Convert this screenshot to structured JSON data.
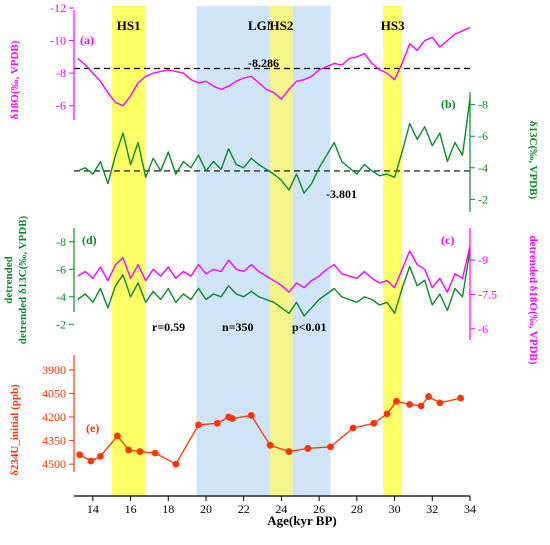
{
  "chart_data": [
    {
      "panel": "(a)",
      "type": "line",
      "ylabel": "δ18O(‰, VPDB)",
      "ylim": [
        -5,
        -12
      ],
      "yticks": [
        -6,
        -8,
        -10,
        -12
      ],
      "mean_value": -8.286,
      "mean_label": "-8.286",
      "color": "#ff00ff",
      "x": [
        13.2,
        13.6,
        14.0,
        14.4,
        14.8,
        15.2,
        15.6,
        16.0,
        16.4,
        16.8,
        17.2,
        17.6,
        18.0,
        18.4,
        18.8,
        19.2,
        19.6,
        20.0,
        20.4,
        20.8,
        21.2,
        21.6,
        22.0,
        22.4,
        22.8,
        23.2,
        23.6,
        24.0,
        24.4,
        24.8,
        25.2,
        25.6,
        26.0,
        26.4,
        26.8,
        27.2,
        27.6,
        28.0,
        28.4,
        28.8,
        29.2,
        29.6,
        30.0,
        30.4,
        30.8,
        31.2,
        31.6,
        32.0,
        32.4,
        32.8,
        33.2,
        33.6,
        34.0
      ],
      "values": [
        -8.9,
        -8.5,
        -8.0,
        -7.5,
        -6.8,
        -6.2,
        -6.0,
        -6.6,
        -7.4,
        -7.8,
        -8.0,
        -8.1,
        -8.2,
        -8.1,
        -8.0,
        -7.6,
        -7.4,
        -7.5,
        -7.2,
        -7.0,
        -7.2,
        -7.5,
        -7.7,
        -7.8,
        -7.4,
        -7.0,
        -6.8,
        -6.4,
        -7.0,
        -7.5,
        -7.6,
        -7.8,
        -8.2,
        -8.4,
        -8.6,
        -8.5,
        -8.9,
        -9.0,
        -9.2,
        -8.6,
        -8.2,
        -8.0,
        -7.6,
        -8.6,
        -9.8,
        -9.4,
        -10.0,
        -10.2,
        -9.6,
        -10.0,
        -10.4,
        -10.6,
        -10.8
      ]
    },
    {
      "panel": "(b)",
      "type": "line",
      "ylabel": "δ13C(‰, VPDB)",
      "ylim": [
        -1.2,
        -8.8
      ],
      "yticks": [
        -2,
        -4,
        -6,
        -8
      ],
      "mean_value": -3.801,
      "mean_label": "-3.801",
      "color": "#0a8a2a",
      "x": [
        13.2,
        13.6,
        14.0,
        14.4,
        14.8,
        15.2,
        15.6,
        16.0,
        16.4,
        16.8,
        17.2,
        17.6,
        18.0,
        18.4,
        18.8,
        19.2,
        19.6,
        20.0,
        20.4,
        20.8,
        21.2,
        21.6,
        22.0,
        22.4,
        22.8,
        23.2,
        23.6,
        24.0,
        24.4,
        24.8,
        25.2,
        25.6,
        26.0,
        26.4,
        26.8,
        27.2,
        27.6,
        28.0,
        28.4,
        28.8,
        29.2,
        29.6,
        30.0,
        30.4,
        30.8,
        31.2,
        31.6,
        32.0,
        32.4,
        32.8,
        33.2,
        33.6,
        34.0
      ],
      "values": [
        -3.8,
        -4.0,
        -3.6,
        -4.4,
        -3.0,
        -4.8,
        -6.2,
        -4.2,
        -5.6,
        -3.4,
        -4.6,
        -3.8,
        -5.0,
        -3.6,
        -4.4,
        -4.0,
        -4.8,
        -3.8,
        -4.4,
        -3.9,
        -5.2,
        -4.2,
        -4.0,
        -4.6,
        -4.2,
        -3.9,
        -3.6,
        -3.2,
        -2.6,
        -3.6,
        -2.4,
        -3.0,
        -4.0,
        -4.8,
        -5.6,
        -4.4,
        -4.0,
        -3.6,
        -4.2,
        -3.8,
        -3.5,
        -3.6,
        -3.4,
        -5.0,
        -6.8,
        -5.8,
        -6.6,
        -5.4,
        -6.2,
        -4.4,
        -5.6,
        -4.8,
        -8.4
      ]
    },
    {
      "panel": "(c)/(d)",
      "type": "line",
      "annotations": [
        "r=0.59",
        "n=350",
        "p<0.01"
      ],
      "series": [
        {
          "name": "detrended δ13C(‰, VPDB)",
          "label": "(d)",
          "color": "#0a8a2a",
          "ylim": [
            -1.0,
            -9.0
          ],
          "yticks": [
            -2,
            -4,
            -6,
            -8
          ],
          "x": [
            13.2,
            13.6,
            14.0,
            14.4,
            14.8,
            15.2,
            15.6,
            16.0,
            16.4,
            16.8,
            17.2,
            17.6,
            18.0,
            18.4,
            18.8,
            19.2,
            19.6,
            20.0,
            20.4,
            20.8,
            21.2,
            21.6,
            22.0,
            22.4,
            22.8,
            23.2,
            23.6,
            24.0,
            24.4,
            24.8,
            25.2,
            25.6,
            26.0,
            26.4,
            26.8,
            27.2,
            27.6,
            28.0,
            28.4,
            28.8,
            29.2,
            29.6,
            30.0,
            30.4,
            30.8,
            31.2,
            31.6,
            32.0,
            32.4,
            32.8,
            33.2,
            33.6,
            34.0
          ],
          "values": [
            -3.8,
            -4.2,
            -3.6,
            -4.6,
            -3.2,
            -4.8,
            -5.6,
            -4.0,
            -5.0,
            -3.6,
            -4.4,
            -3.8,
            -4.6,
            -3.6,
            -4.2,
            -3.8,
            -4.6,
            -3.8,
            -4.2,
            -4.0,
            -4.8,
            -4.2,
            -4.0,
            -4.4,
            -4.0,
            -3.8,
            -3.6,
            -3.2,
            -2.8,
            -3.6,
            -2.6,
            -3.2,
            -3.8,
            -4.2,
            -4.6,
            -4.0,
            -3.8,
            -3.6,
            -4.0,
            -3.8,
            -3.4,
            -3.6,
            -2.8,
            -4.6,
            -6.2,
            -4.8,
            -5.2,
            -3.4,
            -4.2,
            -3.0,
            -4.6,
            -4.0,
            -7.4
          ]
        },
        {
          "name": "detrended δ18O(‰, VPDB)",
          "label": "(c)",
          "color": "#ff00ff",
          "ylim": [
            -5.6,
            -10.4
          ],
          "yticks": [
            -6,
            -7.5,
            -9
          ],
          "x": [
            13.2,
            13.6,
            14.0,
            14.4,
            14.8,
            15.2,
            15.6,
            16.0,
            16.4,
            16.8,
            17.2,
            17.6,
            18.0,
            18.4,
            18.8,
            19.2,
            19.6,
            20.0,
            20.4,
            20.8,
            21.2,
            21.6,
            22.0,
            22.4,
            22.8,
            23.2,
            23.6,
            24.0,
            24.4,
            24.8,
            25.2,
            25.6,
            26.0,
            26.4,
            26.8,
            27.2,
            27.6,
            28.0,
            28.4,
            28.8,
            29.2,
            29.6,
            30.0,
            30.4,
            30.8,
            31.2,
            31.6,
            32.0,
            32.4,
            32.8,
            33.2,
            33.6,
            34.0
          ],
          "values": [
            -8.3,
            -8.5,
            -8.2,
            -8.7,
            -8.1,
            -8.8,
            -9.1,
            -8.2,
            -8.8,
            -8.1,
            -8.6,
            -8.3,
            -8.7,
            -8.2,
            -8.5,
            -8.3,
            -8.8,
            -8.4,
            -8.6,
            -8.5,
            -9.0,
            -8.6,
            -8.5,
            -8.8,
            -8.5,
            -8.3,
            -8.1,
            -7.9,
            -7.6,
            -8.0,
            -7.8,
            -8.1,
            -8.3,
            -8.6,
            -8.8,
            -8.4,
            -8.3,
            -8.2,
            -8.5,
            -8.2,
            -8.0,
            -8.1,
            -7.8,
            -8.6,
            -9.4,
            -8.8,
            -8.6,
            -7.8,
            -8.2,
            -7.6,
            -8.4,
            -8.2,
            -9.6
          ]
        }
      ]
    },
    {
      "panel": "(e)",
      "type": "line",
      "markers": true,
      "ylabel": "δ234U_initial (ppb)",
      "ylim": [
        4550,
        3850
      ],
      "yticks": [
        3900,
        4050,
        4200,
        4350,
        4500
      ],
      "color": "#ff3300",
      "x": [
        13.3,
        13.9,
        14.4,
        15.3,
        15.9,
        16.5,
        17.3,
        18.4,
        19.6,
        20.6,
        21.2,
        21.4,
        22.4,
        23.4,
        24.4,
        25.4,
        26.6,
        27.8,
        28.9,
        29.6,
        30.1,
        30.8,
        31.4,
        31.8,
        32.4,
        33.5
      ],
      "values": [
        4440,
        4480,
        4450,
        4320,
        4410,
        4420,
        4430,
        4500,
        4250,
        4240,
        4200,
        4210,
        4190,
        4380,
        4420,
        4400,
        4390,
        4270,
        4240,
        4180,
        4100,
        4120,
        4130,
        4070,
        4110,
        4080
      ]
    }
  ],
  "x_axis": {
    "label": "Age(kyr BP)",
    "xlim": [
      13,
      34
    ],
    "ticks": [
      "14",
      "16",
      "18",
      "20",
      "22",
      "24",
      "26",
      "28",
      "30",
      "32",
      "34"
    ]
  },
  "events": [
    {
      "label": "HS1",
      "start": 15.0,
      "end": 16.8,
      "color": "#ffff66"
    },
    {
      "label": "LGM",
      "start": 19.5,
      "end": 26.6,
      "color": "#cfe4f7"
    },
    {
      "label": "HS2",
      "start": 23.4,
      "end": 24.6,
      "color": "#f4f48a"
    },
    {
      "label": "HS3",
      "start": 29.4,
      "end": 30.4,
      "color": "#ffff66"
    }
  ]
}
